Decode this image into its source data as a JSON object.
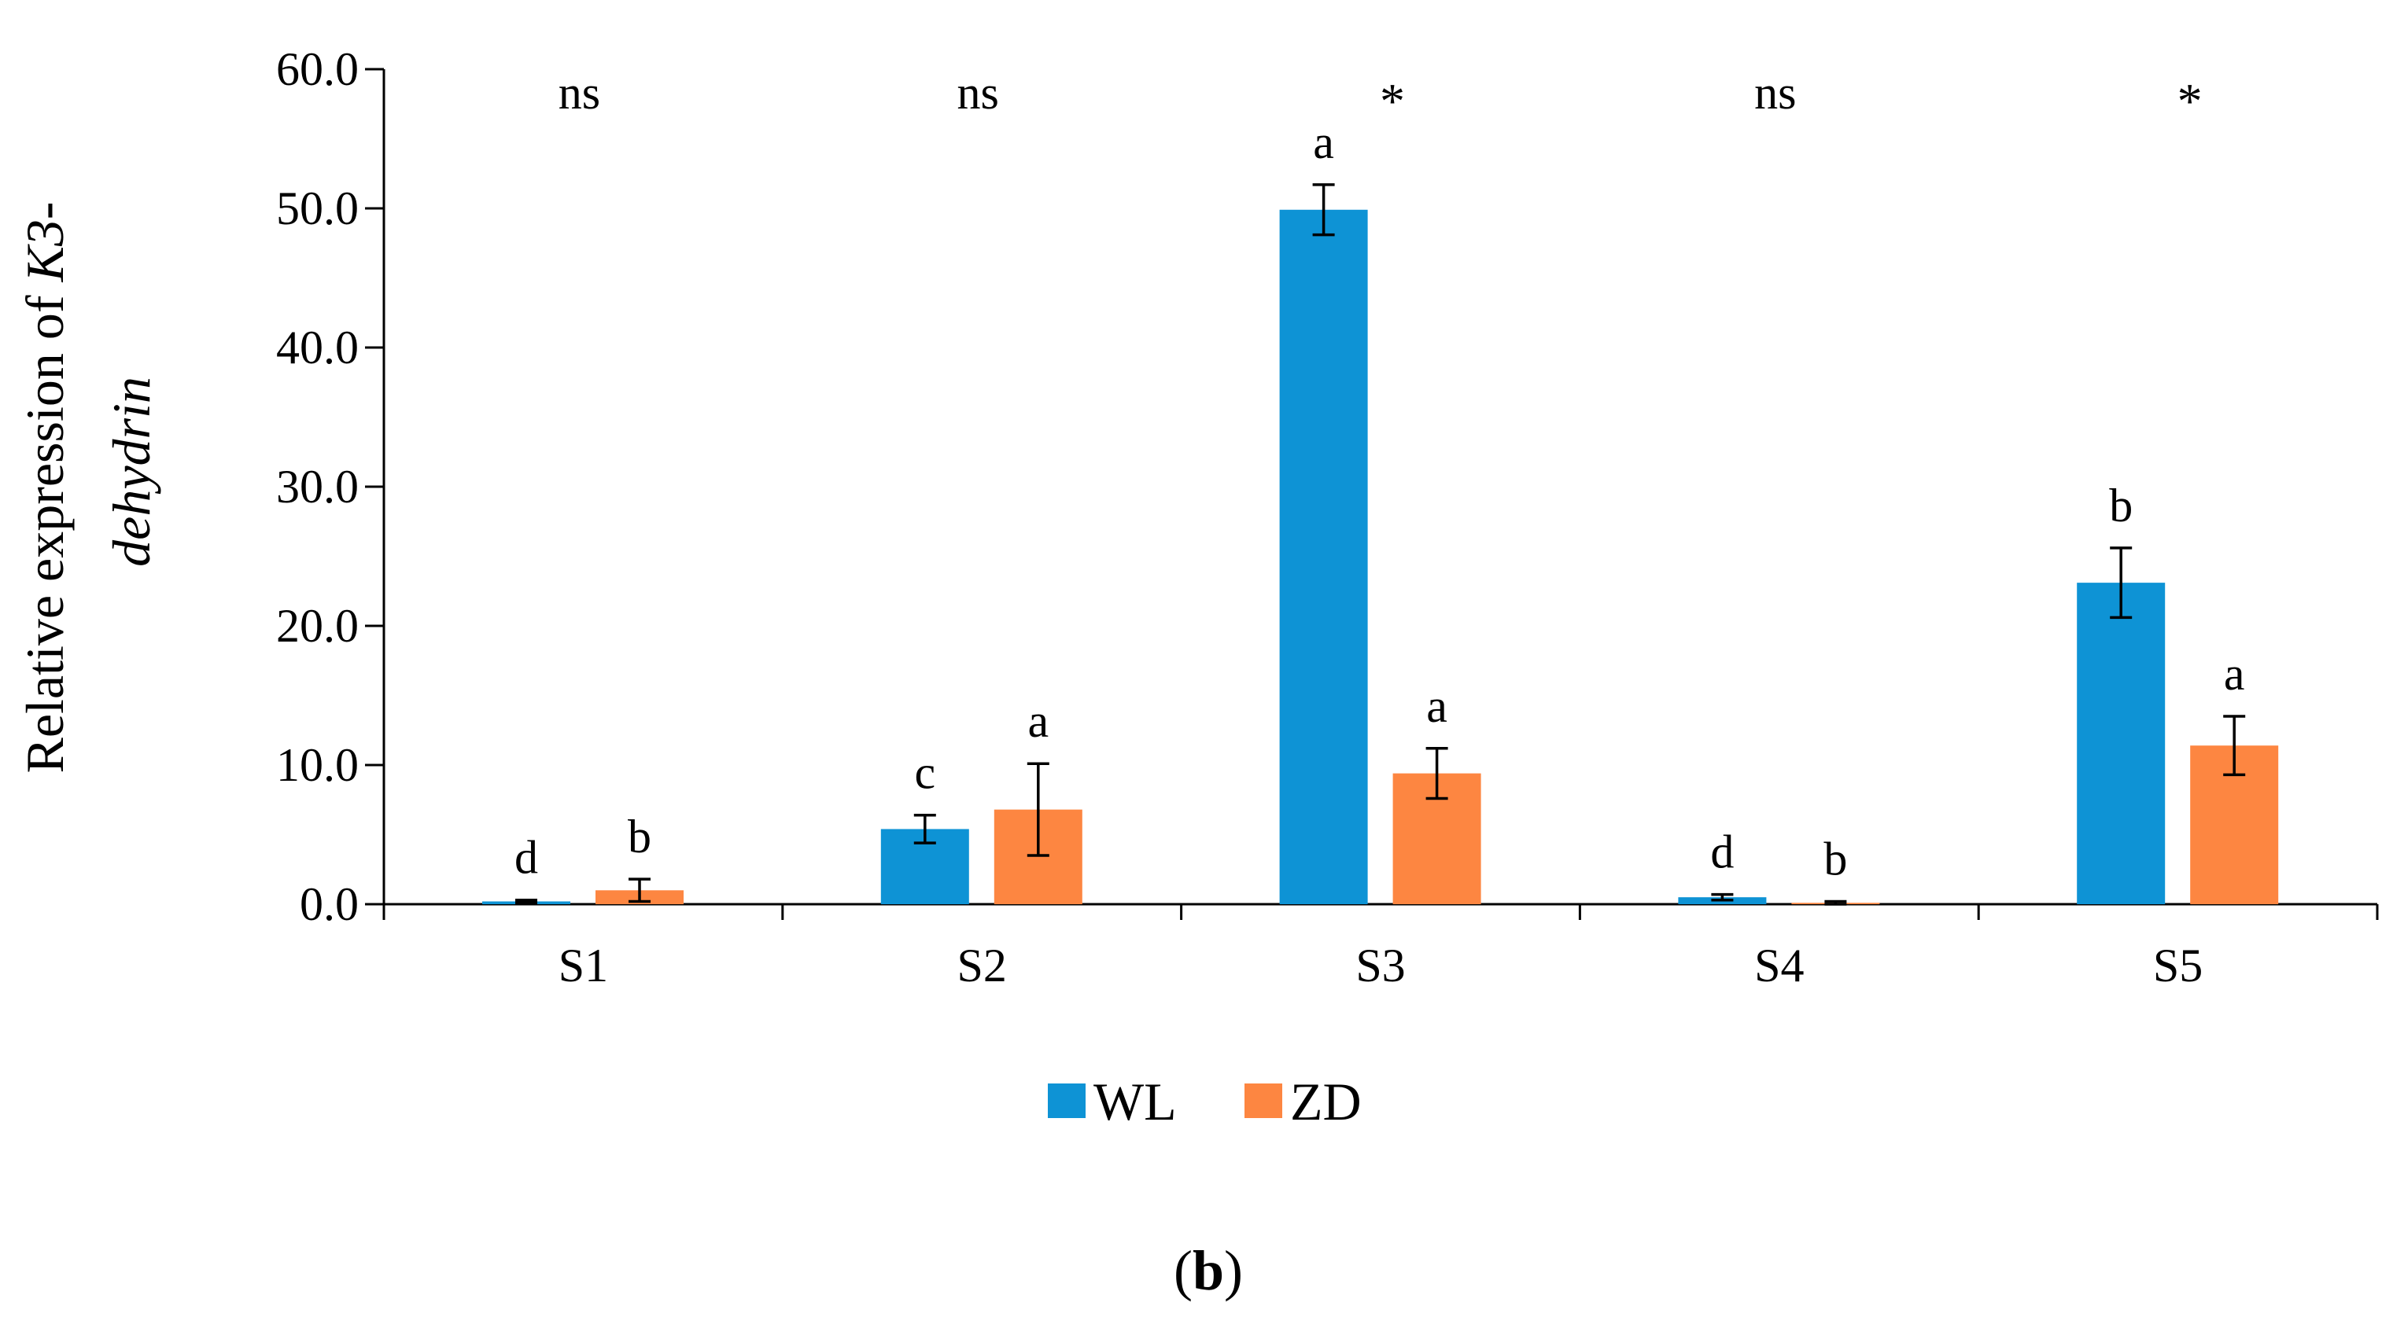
{
  "chart_data": {
    "type": "bar",
    "categories": [
      "S1",
      "S2",
      "S3",
      "S4",
      "S5"
    ],
    "series": [
      {
        "name": "WL",
        "color": "#0E93D5",
        "values": [
          0.2,
          5.4,
          49.9,
          0.5,
          23.1
        ],
        "errors": [
          0.1,
          1.0,
          1.8,
          0.2,
          2.5
        ],
        "letters": [
          "d",
          "c",
          "a",
          "d",
          "b"
        ]
      },
      {
        "name": "ZD",
        "color": "#FD8641",
        "values": [
          1.0,
          6.8,
          9.4,
          0.1,
          11.4
        ],
        "errors": [
          0.8,
          3.3,
          1.8,
          0.1,
          2.1
        ],
        "letters": [
          "b",
          "a",
          "a",
          "b",
          "a"
        ]
      }
    ],
    "significance": [
      "ns",
      "ns",
      "*",
      "ns",
      "*"
    ],
    "ylabel": {
      "prefix": "Relative expression of ",
      "gene_italic": "K3",
      "dash": "-",
      "line2_italic": "dehydrin"
    },
    "yticks": [
      "0.0",
      "10.0",
      "20.0",
      "30.0",
      "40.0",
      "50.0",
      "60.0"
    ],
    "ylim": [
      0,
      60
    ],
    "legend": {
      "position": "bottom-center"
    },
    "panel_label": {
      "open": "(",
      "letter": "b",
      "close": ")"
    }
  }
}
